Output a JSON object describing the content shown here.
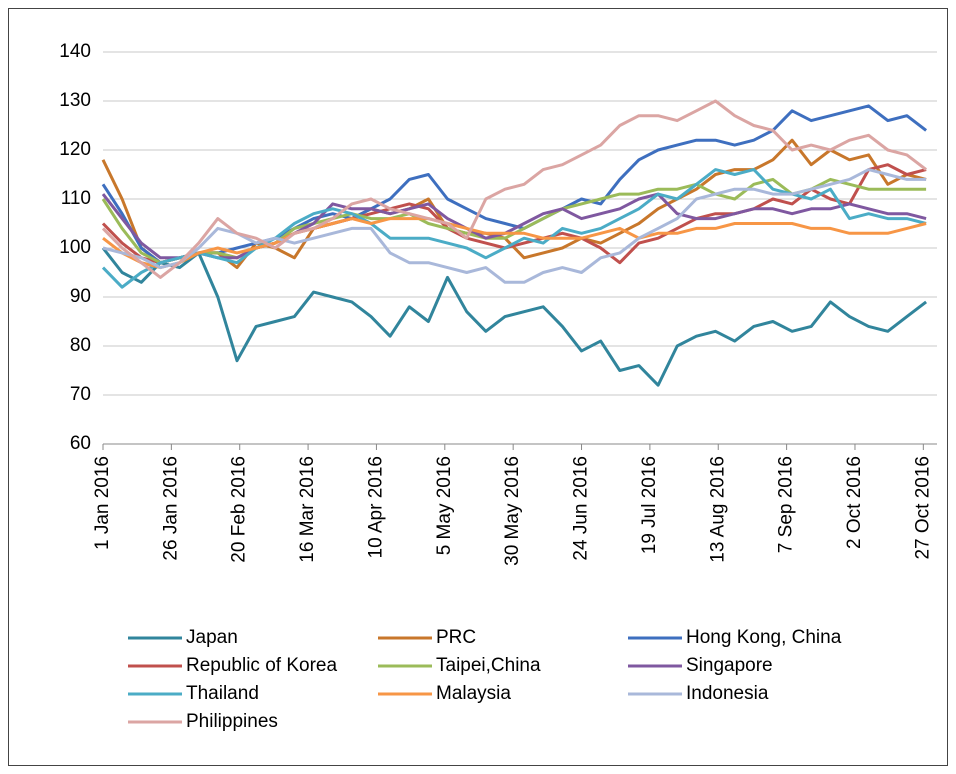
{
  "chart_data": {
    "type": "line",
    "x": [
      "2016-01-01",
      "2016-01-08",
      "2016-01-15",
      "2016-01-22",
      "2016-01-29",
      "2016-02-05",
      "2016-02-12",
      "2016-02-19",
      "2016-02-26",
      "2016-03-04",
      "2016-03-11",
      "2016-03-18",
      "2016-03-25",
      "2016-04-01",
      "2016-04-08",
      "2016-04-15",
      "2016-04-22",
      "2016-04-29",
      "2016-05-06",
      "2016-05-13",
      "2016-05-20",
      "2016-05-27",
      "2016-06-03",
      "2016-06-10",
      "2016-06-17",
      "2016-06-24",
      "2016-07-01",
      "2016-07-08",
      "2016-07-15",
      "2016-07-22",
      "2016-07-29",
      "2016-08-05",
      "2016-08-12",
      "2016-08-19",
      "2016-08-26",
      "2016-09-02",
      "2016-09-09",
      "2016-09-16",
      "2016-09-23",
      "2016-09-30",
      "2016-10-07",
      "2016-10-14",
      "2016-10-21",
      "2016-10-28"
    ],
    "xlim": [
      "2016-01-01",
      "2016-11-01"
    ],
    "xticks": [
      {
        "value": "2016-01-01",
        "label": "1 Jan 2016"
      },
      {
        "value": "2016-01-26",
        "label": "26 Jan 2016"
      },
      {
        "value": "2016-02-20",
        "label": "20 Feb 2016"
      },
      {
        "value": "2016-03-16",
        "label": "16 Mar 2016"
      },
      {
        "value": "2016-04-10",
        "label": "10 Apr 2016"
      },
      {
        "value": "2016-05-05",
        "label": "5 May 2016"
      },
      {
        "value": "2016-05-30",
        "label": "30 May 2016"
      },
      {
        "value": "2016-06-24",
        "label": "24 Jun 2016"
      },
      {
        "value": "2016-07-19",
        "label": "19 Jul 2016"
      },
      {
        "value": "2016-08-13",
        "label": "13 Aug 2016"
      },
      {
        "value": "2016-09-07",
        "label": "7 Sep 2016"
      },
      {
        "value": "2016-10-02",
        "label": "2 Oct 2016"
      },
      {
        "value": "2016-10-27",
        "label": "27 Oct 2016"
      }
    ],
    "ylim": [
      60,
      140
    ],
    "yticks": [
      60,
      70,
      80,
      90,
      100,
      110,
      120,
      130,
      140
    ],
    "grid": true,
    "legend": "bottom",
    "series": [
      {
        "name": "Japan",
        "color": "#31859c",
        "values": [
          100,
          95,
          93,
          97,
          96,
          99,
          90,
          77,
          84,
          85,
          86,
          91,
          90,
          89,
          86,
          82,
          88,
          85,
          94,
          87,
          83,
          86,
          87,
          88,
          84,
          79,
          81,
          75,
          76,
          72,
          80,
          82,
          83,
          81,
          84,
          85,
          83,
          84,
          89,
          86,
          84,
          83,
          86,
          89
        ]
      },
      {
        "name": "PRC",
        "color": "#c8772b",
        "values": [
          118,
          110,
          100,
          97,
          98,
          99,
          99,
          96,
          101,
          100,
          98,
          104,
          105,
          106,
          108,
          107,
          108,
          110,
          104,
          103,
          103,
          102,
          98,
          99,
          100,
          102,
          101,
          103,
          105,
          108,
          110,
          112,
          115,
          116,
          116,
          118,
          122,
          117,
          120,
          118,
          119,
          113,
          115,
          114
        ]
      },
      {
        "name": "Hong Kong, China",
        "color": "#3e6fbf",
        "values": [
          113,
          107,
          100,
          97,
          98,
          99,
          99,
          100,
          101,
          102,
          104,
          106,
          107,
          106,
          108,
          110,
          114,
          115,
          110,
          108,
          106,
          105,
          104,
          106,
          108,
          110,
          109,
          114,
          118,
          120,
          121,
          122,
          122,
          121,
          122,
          124,
          128,
          126,
          127,
          128,
          129,
          126,
          127,
          124
        ]
      },
      {
        "name": "Republic of Korea",
        "color": "#c0504d",
        "values": [
          105,
          101,
          98,
          97,
          98,
          99,
          99,
          98,
          100,
          101,
          103,
          104,
          105,
          106,
          107,
          108,
          109,
          108,
          104,
          102,
          101,
          100,
          101,
          102,
          103,
          102,
          100,
          97,
          101,
          102,
          104,
          106,
          107,
          107,
          108,
          110,
          109,
          112,
          110,
          109,
          116,
          117,
          115,
          116
        ]
      },
      {
        "name": "Taipei,China",
        "color": "#9bbb59",
        "values": [
          110,
          104,
          99,
          97,
          98,
          99,
          99,
          98,
          100,
          101,
          104,
          105,
          106,
          107,
          106,
          106,
          107,
          105,
          104,
          103,
          102,
          102,
          104,
          106,
          108,
          109,
          110,
          111,
          111,
          112,
          112,
          113,
          111,
          110,
          113,
          114,
          111,
          112,
          114,
          113,
          112,
          112,
          112,
          112
        ]
      },
      {
        "name": "Singapore",
        "color": "#7f58a0",
        "values": [
          111,
          106,
          101,
          98,
          98,
          99,
          98,
          98,
          100,
          101,
          103,
          105,
          109,
          108,
          108,
          107,
          108,
          109,
          106,
          104,
          102,
          103,
          105,
          107,
          108,
          106,
          107,
          108,
          110,
          111,
          107,
          106,
          106,
          107,
          108,
          108,
          107,
          108,
          108,
          109,
          108,
          107,
          107,
          106
        ]
      },
      {
        "name": "Thailand",
        "color": "#4bacc6",
        "values": [
          96,
          92,
          95,
          97,
          98,
          99,
          98,
          97,
          100,
          102,
          105,
          107,
          108,
          107,
          105,
          102,
          102,
          102,
          101,
          100,
          98,
          100,
          102,
          101,
          104,
          103,
          104,
          106,
          108,
          111,
          110,
          113,
          116,
          115,
          116,
          112,
          111,
          110,
          112,
          106,
          107,
          106,
          106,
          105
        ]
      },
      {
        "name": "Malaysia",
        "color": "#f79646",
        "values": [
          102,
          99,
          97,
          96,
          97,
          99,
          100,
          99,
          100,
          101,
          103,
          104,
          105,
          106,
          105,
          106,
          106,
          106,
          105,
          104,
          103,
          103,
          103,
          102,
          102,
          102,
          103,
          104,
          102,
          103,
          103,
          104,
          104,
          105,
          105,
          105,
          105,
          104,
          104,
          103,
          103,
          103,
          104,
          105
        ]
      },
      {
        "name": "Indonesia",
        "color": "#a9b8da",
        "values": [
          100,
          99,
          98,
          96,
          97,
          100,
          104,
          103,
          101,
          102,
          101,
          102,
          103,
          104,
          104,
          99,
          97,
          97,
          96,
          95,
          96,
          93,
          93,
          95,
          96,
          95,
          98,
          99,
          102,
          104,
          106,
          110,
          111,
          112,
          112,
          111,
          111,
          112,
          113,
          114,
          116,
          115,
          114,
          114
        ]
      },
      {
        "name": "Philippines",
        "color": "#dba5a3",
        "values": [
          104,
          100,
          97,
          94,
          97,
          101,
          106,
          103,
          102,
          100,
          103,
          104,
          106,
          109,
          110,
          108,
          107,
          106,
          105,
          102,
          110,
          112,
          113,
          116,
          117,
          119,
          121,
          125,
          127,
          127,
          126,
          128,
          130,
          127,
          125,
          124,
          120,
          121,
          120,
          122,
          123,
          120,
          119,
          116
        ]
      }
    ]
  }
}
